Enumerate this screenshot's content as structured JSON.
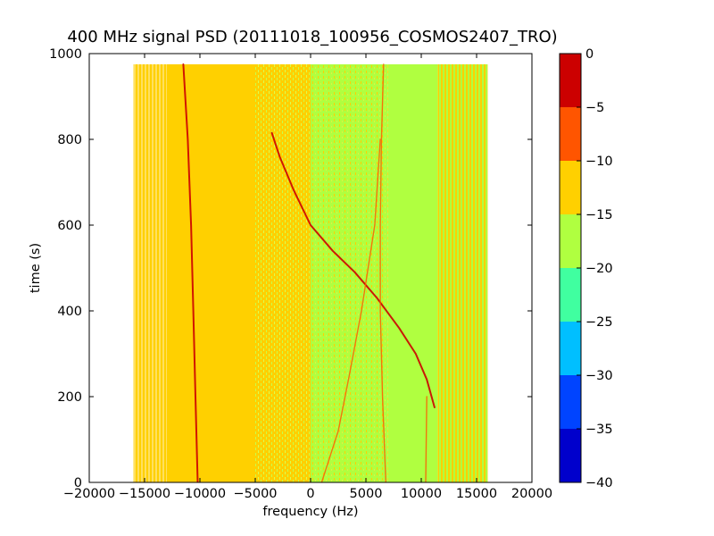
{
  "chart_data": {
    "type": "heatmap",
    "title": "400 MHz signal PSD (20111018_100956_COSMOS2407_TRO)",
    "xlabel": "frequency (Hz)",
    "ylabel": "time (s)",
    "xlim": [
      -20000,
      20000
    ],
    "ylim": [
      0,
      1000
    ],
    "x_ticks": [
      "−20000",
      "−15000",
      "−10000",
      "−5000",
      "0",
      "5000",
      "10000",
      "15000",
      "20000"
    ],
    "y_ticks": [
      "0",
      "200",
      "400",
      "600",
      "800",
      "1000"
    ],
    "data_extent": {
      "x": [
        -16000,
        16000
      ],
      "y": [
        0,
        975
      ]
    },
    "colorbar": {
      "range": [
        -40,
        0
      ],
      "levels": [
        -40,
        -35,
        -30,
        -25,
        -20,
        -15,
        -10,
        -5,
        0
      ],
      "tick_labels": [
        "−40",
        "−35",
        "−30",
        "−25",
        "−20",
        "−15",
        "−10",
        "−5",
        "0"
      ],
      "colors": [
        "#0000cc",
        "#0044ff",
        "#00bfff",
        "#40ffa0",
        "#b0ff40",
        "#ffd000",
        "#ff5500",
        "#cc0000"
      ]
    },
    "regions": [
      {
        "x": [
          -16000,
          -13000
        ],
        "level_band": [
          -15,
          -10
        ],
        "texture": "striped",
        "note": ""
      },
      {
        "x": [
          -13000,
          -5000
        ],
        "level_band": [
          -15,
          -10
        ],
        "texture": "solid",
        "note": ""
      },
      {
        "x": [
          -5000,
          0
        ],
        "level_band": [
          -15,
          -10
        ],
        "texture": "speckled"
      },
      {
        "x": [
          0,
          7000
        ],
        "level_band": [
          -20,
          -15
        ],
        "texture": "speckled"
      },
      {
        "x": [
          7000,
          11500
        ],
        "level_band": [
          -20,
          -15
        ],
        "texture": "solid"
      },
      {
        "x": [
          11500,
          16000
        ],
        "level_band": [
          -20,
          -15
        ],
        "texture": "striped"
      }
    ],
    "traces": [
      {
        "level": -5,
        "points": [
          [
            -11500,
            975
          ],
          [
            -11100,
            800
          ],
          [
            -10800,
            600
          ],
          [
            -10600,
            400
          ],
          [
            -10400,
            200
          ],
          [
            -10200,
            0
          ]
        ]
      },
      {
        "level": -5,
        "points": [
          [
            -3500,
            815
          ],
          [
            -2800,
            760
          ],
          [
            -1500,
            680
          ],
          [
            0,
            600
          ],
          [
            2000,
            540
          ],
          [
            4000,
            490
          ],
          [
            6000,
            430
          ],
          [
            8000,
            360
          ],
          [
            9500,
            300
          ],
          [
            10500,
            240
          ],
          [
            11200,
            175
          ]
        ]
      },
      {
        "level": -10,
        "points": [
          [
            1000,
            0
          ],
          [
            2500,
            120
          ],
          [
            3500,
            250
          ],
          [
            4600,
            400
          ],
          [
            5800,
            600
          ],
          [
            6300,
            800
          ]
        ]
      },
      {
        "level": -10,
        "points": [
          [
            6600,
            975
          ],
          [
            6400,
            800
          ],
          [
            6300,
            600
          ],
          [
            6300,
            400
          ],
          [
            6500,
            200
          ],
          [
            6800,
            0
          ]
        ]
      },
      {
        "level": -10,
        "points": [
          [
            10400,
            0
          ],
          [
            10500,
            200
          ]
        ]
      }
    ]
  }
}
